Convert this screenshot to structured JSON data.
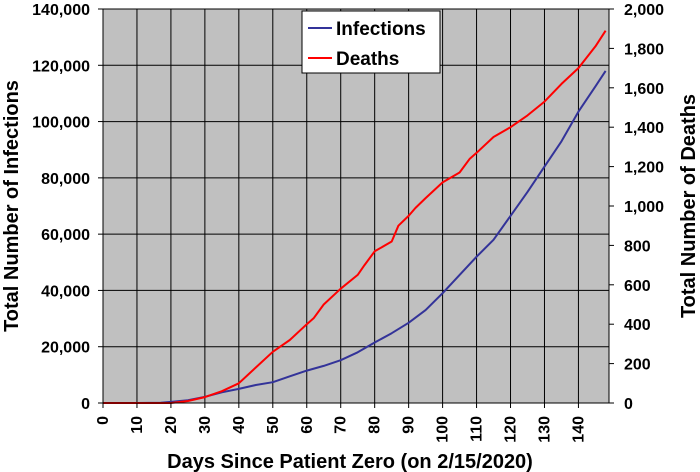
{
  "chart_data": {
    "type": "line",
    "xlabel": "Days Since Patient Zero (on 2/15/2020)",
    "ylabel_left": "Total Number of Infections",
    "ylabel_right": "Total Number of Deaths",
    "xlim": [
      0,
      149
    ],
    "x_ticks": [
      "0",
      "10",
      "20",
      "30",
      "40",
      "50",
      "60",
      "70",
      "80",
      "90",
      "100",
      "110",
      "120",
      "130",
      "140"
    ],
    "ylim_left": [
      0,
      140000
    ],
    "y_ticks_left": [
      "0",
      "20,000",
      "40,000",
      "60,000",
      "80,000",
      "100,000",
      "120,000",
      "140,000"
    ],
    "ylim_right": [
      0,
      2000
    ],
    "y_ticks_right": [
      "0",
      "200",
      "400",
      "600",
      "800",
      "1,000",
      "1,200",
      "1,400",
      "1,600",
      "1,800",
      "2,000"
    ],
    "grid": true,
    "legend_position": "top-center",
    "background_color": "#c0c0c0",
    "series": [
      {
        "name": "Infections",
        "axis": "left",
        "color": "#333399",
        "x": [
          0,
          10,
          17,
          20,
          25,
          30,
          35,
          40,
          45,
          50,
          55,
          60,
          65,
          70,
          75,
          80,
          85,
          90,
          95,
          100,
          105,
          110,
          115,
          120,
          125,
          130,
          135,
          140,
          145,
          148
        ],
        "values": [
          0,
          0,
          100,
          400,
          1000,
          2200,
          3800,
          5000,
          6400,
          7400,
          9500,
          11500,
          13200,
          15200,
          18000,
          21500,
          24800,
          28500,
          33000,
          39000,
          45500,
          52000,
          58000,
          66500,
          75000,
          84000,
          93000,
          103500,
          112500,
          118000
        ]
      },
      {
        "name": "Deaths",
        "axis": "right",
        "color": "#ff0000",
        "x": [
          0,
          10,
          20,
          25,
          30,
          35,
          40,
          45,
          50,
          55,
          60,
          62,
          65,
          70,
          75,
          77,
          80,
          85,
          87,
          90,
          92,
          95,
          100,
          105,
          108,
          110,
          115,
          120,
          125,
          130,
          135,
          140,
          145,
          148
        ],
        "values": [
          0,
          0,
          0,
          10,
          30,
          60,
          100,
          180,
          260,
          320,
          400,
          430,
          500,
          580,
          650,
          700,
          770,
          820,
          900,
          950,
          990,
          1040,
          1120,
          1170,
          1240,
          1270,
          1350,
          1400,
          1460,
          1530,
          1620,
          1700,
          1810,
          1890
        ]
      }
    ]
  }
}
